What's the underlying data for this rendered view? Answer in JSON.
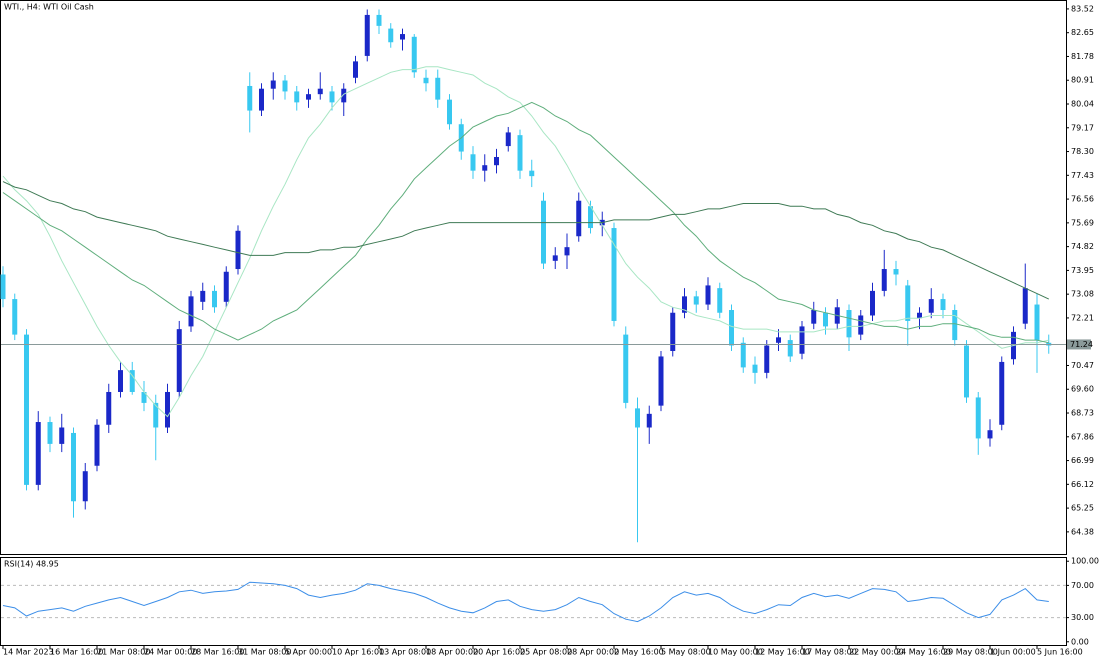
{
  "chart_data": [
    {
      "type": "candlestick",
      "title": "WTI., H4: WTI Oil Cash",
      "categories": [
        "14 Mar 2023",
        null,
        null,
        null,
        "16 Mar 16:00",
        null,
        null,
        null,
        "21 Mar 08:00",
        null,
        null,
        null,
        "24 Mar 00:00",
        null,
        null,
        null,
        "28 Mar 16:00",
        null,
        null,
        null,
        "31 Mar 08:00",
        null,
        null,
        null,
        "5 Apr 00:00",
        null,
        null,
        null,
        "10 Apr 16:00",
        null,
        null,
        null,
        "13 Apr 08:00",
        null,
        null,
        null,
        "18 Apr 00:00",
        null,
        null,
        null,
        "20 Apr 16:00",
        null,
        null,
        null,
        "25 Apr 08:00",
        null,
        null,
        null,
        "28 Apr 00:00",
        null,
        null,
        null,
        "2 May 16:00",
        null,
        null,
        null,
        "5 May 08:00",
        null,
        null,
        null,
        "10 May 00:00",
        null,
        null,
        null,
        "12 May 16:00",
        null,
        null,
        null,
        "17 May 08:00",
        null,
        null,
        null,
        "22 May 00:00",
        null,
        null,
        null,
        "24 May 16:00",
        null,
        null,
        null,
        "29 May 08:00",
        null,
        null,
        null,
        "1 Jun 00:00",
        null,
        null,
        null,
        "5 Jun 16:00",
        null
      ],
      "series": [
        {
          "kind": "ohlc",
          "up_color": "#1a28c8",
          "down_color": "#38c8f0",
          "values": [
            [
              73.8,
              74.1,
              72.6,
              72.9
            ],
            [
              72.9,
              73.1,
              71.4,
              71.6
            ],
            [
              71.6,
              71.8,
              65.9,
              66.1
            ],
            [
              66.1,
              68.8,
              65.9,
              68.4
            ],
            [
              68.4,
              68.6,
              67.3,
              67.6
            ],
            [
              67.6,
              68.7,
              67.3,
              68.2
            ],
            [
              68.0,
              68.2,
              64.9,
              65.5
            ],
            [
              65.5,
              66.9,
              65.2,
              66.6
            ],
            [
              66.8,
              68.5,
              66.6,
              68.3
            ],
            [
              68.3,
              69.8,
              68.0,
              69.5
            ],
            [
              69.5,
              70.6,
              69.3,
              70.3
            ],
            [
              70.3,
              70.6,
              69.4,
              69.5
            ],
            [
              69.5,
              69.9,
              68.8,
              69.1
            ],
            [
              69.1,
              69.4,
              67.0,
              68.2
            ],
            [
              68.2,
              69.8,
              68.0,
              69.5
            ],
            [
              69.5,
              72.1,
              69.3,
              71.8
            ],
            [
              71.9,
              73.2,
              71.7,
              73.0
            ],
            [
              72.8,
              73.5,
              72.5,
              73.2
            ],
            [
              73.2,
              73.4,
              72.4,
              72.6
            ],
            [
              72.8,
              74.1,
              72.6,
              73.9
            ],
            [
              74.0,
              75.6,
              73.8,
              75.4
            ],
            [
              80.7,
              81.2,
              79.0,
              79.8
            ],
            [
              79.8,
              80.8,
              79.6,
              80.6
            ],
            [
              80.6,
              81.2,
              80.2,
              80.9
            ],
            [
              80.9,
              81.1,
              80.2,
              80.5
            ],
            [
              80.5,
              80.7,
              79.8,
              80.1
            ],
            [
              80.2,
              80.6,
              79.9,
              80.4
            ],
            [
              80.4,
              81.2,
              80.2,
              80.6
            ],
            [
              80.5,
              80.7,
              79.8,
              80.1
            ],
            [
              80.1,
              80.8,
              79.6,
              80.6
            ],
            [
              81.0,
              81.8,
              80.8,
              81.6
            ],
            [
              81.8,
              83.5,
              81.6,
              83.3
            ],
            [
              83.3,
              83.5,
              82.6,
              82.9
            ],
            [
              82.8,
              83.0,
              82.1,
              82.3
            ],
            [
              82.4,
              82.8,
              82.0,
              82.6
            ],
            [
              82.5,
              82.6,
              81.0,
              81.2
            ],
            [
              81.0,
              81.3,
              80.5,
              80.8
            ],
            [
              81.0,
              81.3,
              79.9,
              80.2
            ],
            [
              80.2,
              80.4,
              79.1,
              79.3
            ],
            [
              79.3,
              79.5,
              78.0,
              78.3
            ],
            [
              78.2,
              78.5,
              77.3,
              77.6
            ],
            [
              77.6,
              78.2,
              77.2,
              77.8
            ],
            [
              77.8,
              78.4,
              77.5,
              78.1
            ],
            [
              78.5,
              79.2,
              78.3,
              79.0
            ],
            [
              78.9,
              79.1,
              77.3,
              77.6
            ],
            [
              77.6,
              78.0,
              77.0,
              77.4
            ],
            [
              76.5,
              76.8,
              74.0,
              74.2
            ],
            [
              74.3,
              74.8,
              74.0,
              74.5
            ],
            [
              74.5,
              75.3,
              74.0,
              74.8
            ],
            [
              75.2,
              76.8,
              75.0,
              76.5
            ],
            [
              76.3,
              76.5,
              75.3,
              75.5
            ],
            [
              75.6,
              76.1,
              75.2,
              75.8
            ],
            [
              75.5,
              75.7,
              71.9,
              72.1
            ],
            [
              71.6,
              71.9,
              68.9,
              69.1
            ],
            [
              68.9,
              69.3,
              64.0,
              68.2
            ],
            [
              68.2,
              69.0,
              67.6,
              68.7
            ],
            [
              69.0,
              71.0,
              68.8,
              70.8
            ],
            [
              71.0,
              72.6,
              70.8,
              72.4
            ],
            [
              72.4,
              73.3,
              72.2,
              73.0
            ],
            [
              73.0,
              73.2,
              72.4,
              72.7
            ],
            [
              72.7,
              73.7,
              72.5,
              73.4
            ],
            [
              73.3,
              73.5,
              72.2,
              72.4
            ],
            [
              72.5,
              72.7,
              71.0,
              71.2
            ],
            [
              71.3,
              71.5,
              70.2,
              70.4
            ],
            [
              70.5,
              70.8,
              69.8,
              70.2
            ],
            [
              70.2,
              71.4,
              70.0,
              71.2
            ],
            [
              71.3,
              71.8,
              71.0,
              71.5
            ],
            [
              71.4,
              71.6,
              70.6,
              70.8
            ],
            [
              70.9,
              72.1,
              70.7,
              71.9
            ],
            [
              72.0,
              72.8,
              71.8,
              72.5
            ],
            [
              72.4,
              72.6,
              71.6,
              71.9
            ],
            [
              72.0,
              72.9,
              71.8,
              72.6
            ],
            [
              72.5,
              72.7,
              71.0,
              71.5
            ],
            [
              71.6,
              72.5,
              71.4,
              72.3
            ],
            [
              72.3,
              73.5,
              72.1,
              73.2
            ],
            [
              73.2,
              74.7,
              73.0,
              74.0
            ],
            [
              74.0,
              74.3,
              73.4,
              73.8
            ],
            [
              73.4,
              73.6,
              71.2,
              72.1
            ],
            [
              72.2,
              72.6,
              71.8,
              72.4
            ],
            [
              72.4,
              73.3,
              72.2,
              72.9
            ],
            [
              72.9,
              73.1,
              72.2,
              72.5
            ],
            [
              72.5,
              72.7,
              71.2,
              71.4
            ],
            [
              71.2,
              71.4,
              69.1,
              69.3
            ],
            [
              69.3,
              69.5,
              67.2,
              67.8
            ],
            [
              67.8,
              68.5,
              67.5,
              68.1
            ],
            [
              68.3,
              70.8,
              68.1,
              70.6
            ],
            [
              70.7,
              71.9,
              70.5,
              71.7
            ],
            [
              72.0,
              74.2,
              71.8,
              73.3
            ],
            [
              72.7,
              73.1,
              70.2,
              71.4
            ],
            [
              71.3,
              71.6,
              70.9,
              71.2
            ]
          ]
        },
        {
          "kind": "line",
          "color": "#a8e6c4",
          "values": [
            77.4,
            76.9,
            76.5,
            76.0,
            75.2,
            74.3,
            73.5,
            72.7,
            71.9,
            71.2,
            70.6,
            70.1,
            69.5,
            69.0,
            68.6,
            69.3,
            70.1,
            70.8,
            71.7,
            72.6,
            73.5,
            74.4,
            75.4,
            76.3,
            77.1,
            78.0,
            78.8,
            79.3,
            79.9,
            80.4,
            80.6,
            80.8,
            81.0,
            81.2,
            81.3,
            81.3,
            81.4,
            81.4,
            81.3,
            81.2,
            81.1,
            80.8,
            80.6,
            80.3,
            80.1,
            79.6,
            79.0,
            78.5,
            77.8,
            77.0,
            76.3,
            75.6,
            74.9,
            74.2,
            73.7,
            73.3,
            72.8,
            72.6,
            72.5,
            72.3,
            72.2,
            72.1,
            71.9,
            71.8,
            71.8,
            71.8,
            71.7,
            71.7,
            71.7,
            71.7,
            71.8,
            71.8,
            71.9,
            71.9,
            72.0,
            72.1,
            72.1,
            72.2,
            72.2,
            72.3,
            72.3,
            72.3,
            72.0,
            71.7,
            71.4,
            71.1,
            71.2,
            71.3,
            71.3,
            71.4
          ]
        },
        {
          "kind": "line",
          "color": "#5fae7c",
          "values": [
            76.8,
            76.5,
            76.2,
            75.9,
            75.6,
            75.4,
            75.1,
            74.8,
            74.5,
            74.2,
            73.9,
            73.6,
            73.4,
            73.1,
            72.8,
            72.5,
            72.3,
            72.1,
            71.8,
            71.6,
            71.4,
            71.6,
            71.8,
            72.1,
            72.3,
            72.5,
            72.9,
            73.3,
            73.7,
            74.1,
            74.5,
            75.1,
            75.6,
            76.2,
            76.7,
            77.3,
            77.7,
            78.1,
            78.5,
            78.8,
            79.2,
            79.4,
            79.6,
            79.7,
            79.9,
            80.1,
            79.9,
            79.6,
            79.4,
            79.1,
            78.9,
            78.5,
            78.1,
            77.7,
            77.3,
            76.9,
            76.5,
            76.1,
            75.6,
            75.2,
            74.7,
            74.3,
            74.0,
            73.7,
            73.5,
            73.2,
            72.9,
            72.8,
            72.7,
            72.5,
            72.4,
            72.3,
            72.2,
            72.1,
            72.0,
            71.9,
            71.9,
            71.8,
            71.9,
            71.9,
            72.0,
            72.0,
            71.9,
            71.8,
            71.6,
            71.5,
            71.5,
            71.4,
            71.4,
            71.3
          ]
        },
        {
          "kind": "line",
          "color": "#3f7a55",
          "values": [
            77.2,
            77.0,
            76.9,
            76.7,
            76.5,
            76.4,
            76.2,
            76.1,
            75.9,
            75.8,
            75.7,
            75.6,
            75.5,
            75.4,
            75.2,
            75.1,
            75.0,
            74.9,
            74.8,
            74.7,
            74.6,
            74.5,
            74.5,
            74.5,
            74.6,
            74.6,
            74.6,
            74.7,
            74.7,
            74.8,
            74.8,
            74.9,
            75.0,
            75.1,
            75.2,
            75.4,
            75.5,
            75.6,
            75.7,
            75.7,
            75.7,
            75.7,
            75.7,
            75.7,
            75.7,
            75.7,
            75.7,
            75.7,
            75.7,
            75.7,
            75.7,
            75.7,
            75.8,
            75.8,
            75.8,
            75.8,
            75.9,
            76.0,
            76.0,
            76.1,
            76.2,
            76.2,
            76.3,
            76.4,
            76.4,
            76.4,
            76.4,
            76.3,
            76.3,
            76.2,
            76.2,
            76.0,
            75.9,
            75.7,
            75.6,
            75.4,
            75.3,
            75.1,
            75.0,
            74.8,
            74.7,
            74.5,
            74.3,
            74.1,
            73.9,
            73.7,
            73.5,
            73.3,
            73.1,
            72.9
          ]
        }
      ],
      "ylim": [
        63.57,
        83.81
      ],
      "yticks": [
        83.52,
        82.65,
        81.78,
        80.91,
        80.04,
        79.17,
        {
          "value": 78.3,
          "label": "78.30"
        },
        77.43,
        76.56,
        75.69,
        74.82,
        73.95,
        73.08,
        72.21,
        70.47,
        {
          "value": 69.6,
          "label": "69.60"
        },
        68.73,
        67.86,
        66.99,
        66.12,
        65.25,
        64.38
      ],
      "current_price": 71.24
    },
    {
      "type": "line",
      "title": "RSI(14) 48.95",
      "color": "#3c8ee8",
      "values": [
        45,
        42,
        32,
        38,
        40,
        42,
        38,
        44,
        48,
        52,
        55,
        50,
        45,
        50,
        55,
        62,
        64,
        60,
        62,
        63,
        65,
        74,
        73,
        72,
        70,
        66,
        58,
        55,
        58,
        60,
        64,
        72,
        70,
        66,
        63,
        60,
        55,
        48,
        42,
        38,
        36,
        42,
        50,
        52,
        44,
        40,
        38,
        40,
        46,
        55,
        50,
        46,
        35,
        28,
        25,
        32,
        42,
        55,
        62,
        58,
        60,
        55,
        45,
        38,
        35,
        40,
        46,
        45,
        55,
        60,
        56,
        58,
        54,
        60,
        66,
        65,
        62,
        50,
        52,
        55,
        54,
        45,
        36,
        30,
        34,
        52,
        58,
        66,
        52,
        50
      ],
      "ylim": [
        -4,
        104
      ],
      "yticks": [
        {
          "value": 100,
          "label": "100.00"
        },
        {
          "value": 70,
          "label": "70.00"
        },
        {
          "value": 30,
          "label": "30.00"
        },
        {
          "value": 0,
          "label": "0.00"
        }
      ]
    }
  ]
}
